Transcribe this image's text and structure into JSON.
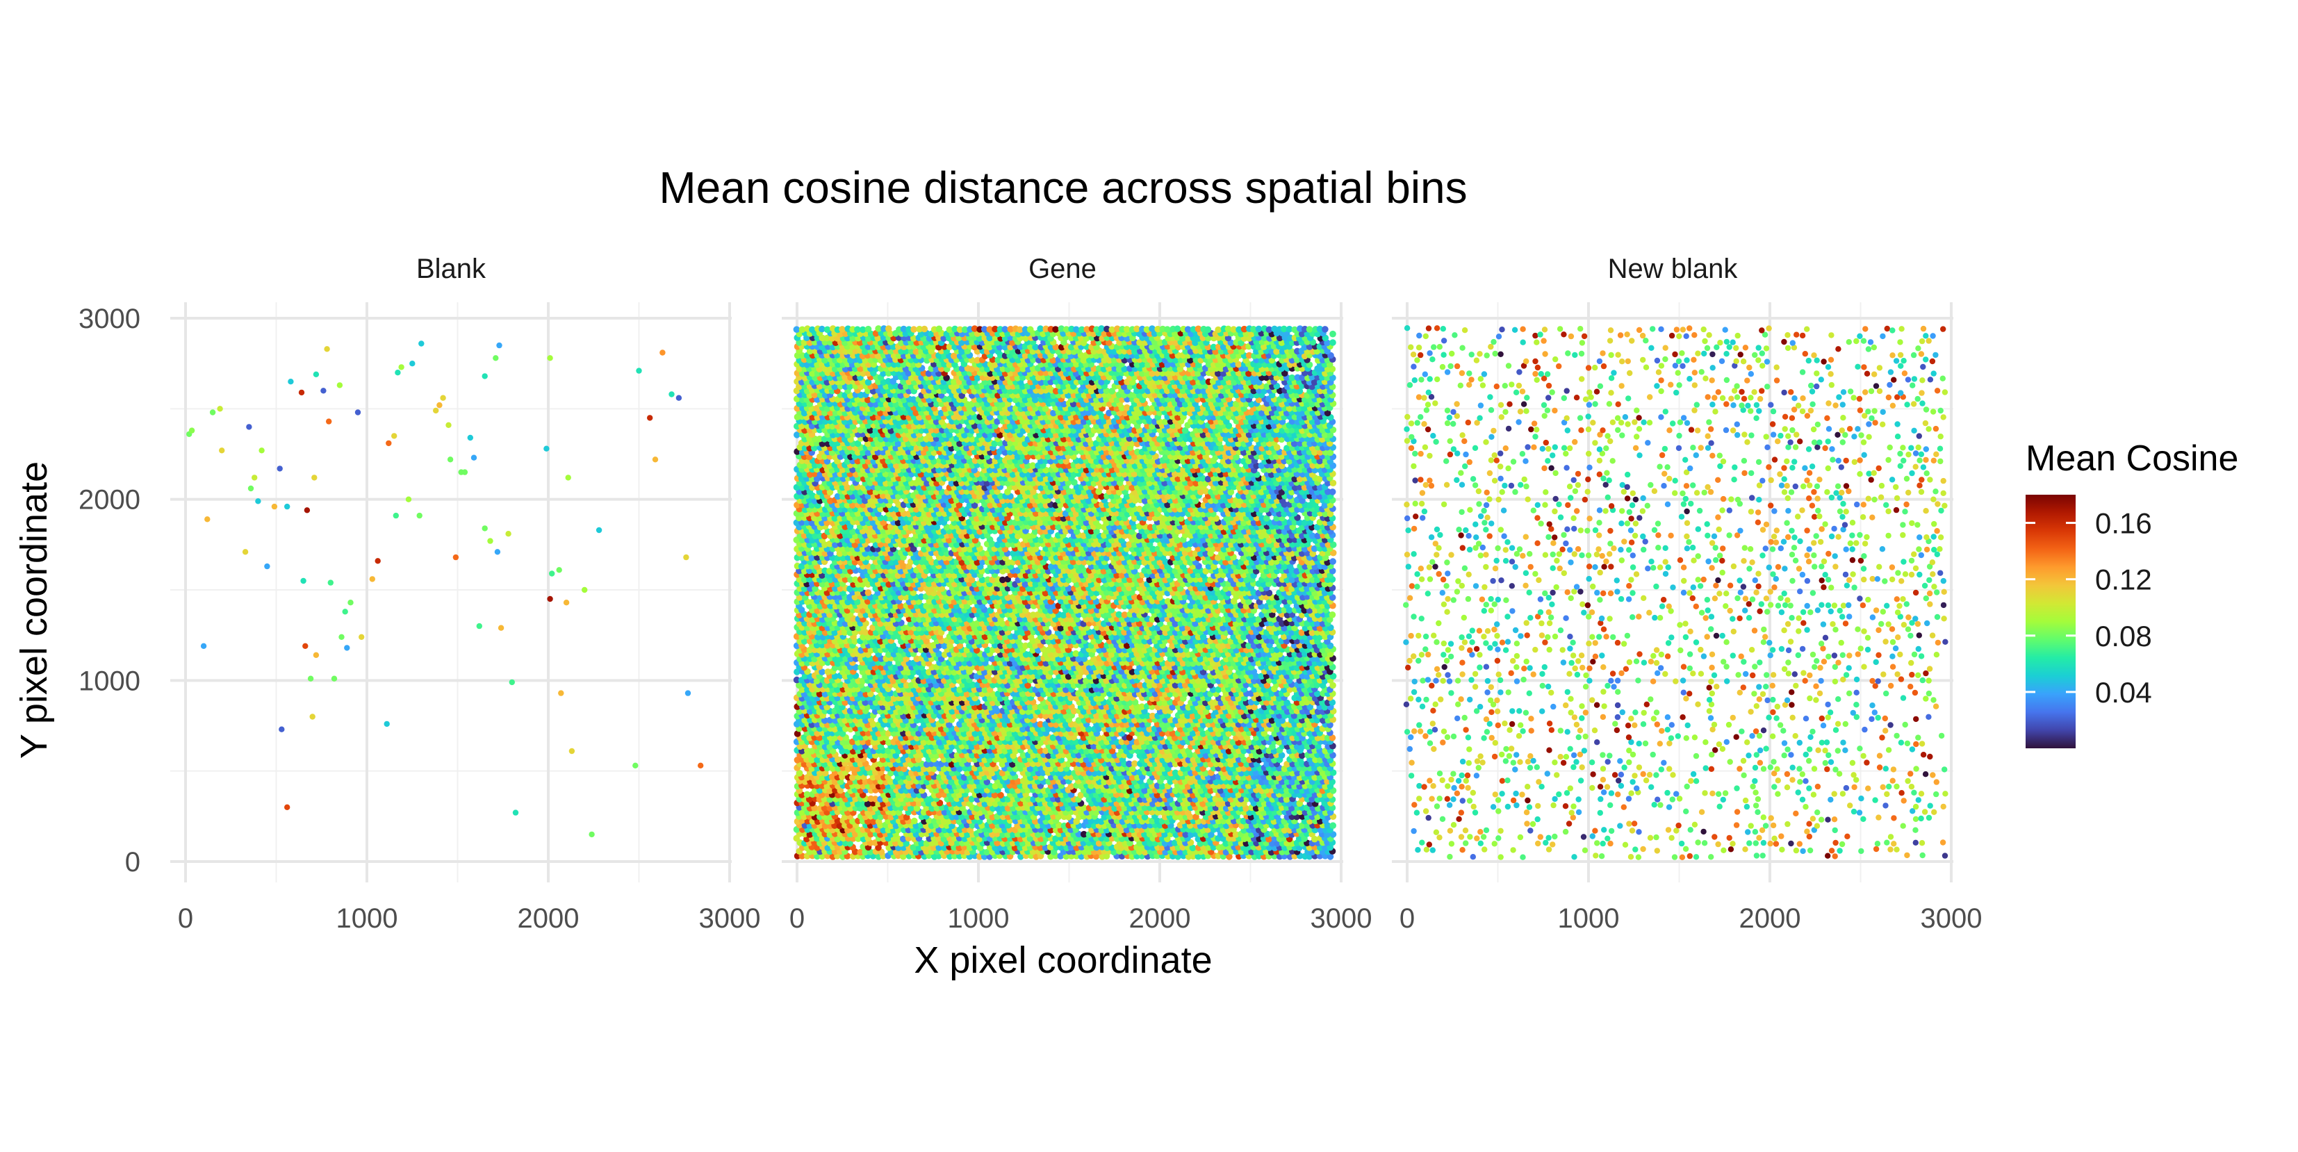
{
  "chart_data": {
    "type": "scatter",
    "title": "Mean cosine distance across spatial bins",
    "xlabel": "X pixel coordinate",
    "ylabel": "Y pixel coordinate",
    "xlim": [
      0,
      3000
    ],
    "ylim": [
      0,
      3000
    ],
    "x_ticks": [
      0,
      1000,
      2000,
      3000
    ],
    "y_ticks": [
      0,
      1000,
      2000,
      3000
    ],
    "grid": true,
    "legend": {
      "title": "Mean Cosine",
      "placement": "right",
      "range": [
        0.0,
        0.18
      ],
      "ticks": [
        0.16,
        0.12,
        0.08,
        0.04
      ],
      "tick_labels": [
        "0.16",
        "0.12",
        "0.08",
        "0.04"
      ],
      "colormap": [
        "#30123b",
        "#4145ab",
        "#4675ed",
        "#39a2fc",
        "#1bcfd4",
        "#24eca6",
        "#61fc6c",
        "#a4fc3b",
        "#d1e834",
        "#f3c63a",
        "#fe9b2d",
        "#f36315",
        "#d93806",
        "#b11901",
        "#7a0402"
      ]
    },
    "facets": [
      {
        "name": "Blank",
        "points": [
          [
            20,
            2360,
            0.08
          ],
          [
            35,
            2380,
            0.085
          ],
          [
            100,
            1190,
            0.04
          ],
          [
            120,
            1890,
            0.12
          ],
          [
            150,
            2480,
            0.08
          ],
          [
            190,
            2500,
            0.1
          ],
          [
            200,
            2270,
            0.11
          ],
          [
            330,
            1710,
            0.11
          ],
          [
            350,
            2400,
            0.02
          ],
          [
            360,
            2060,
            0.08
          ],
          [
            380,
            2120,
            0.1
          ],
          [
            400,
            1990,
            0.05
          ],
          [
            420,
            2270,
            0.09
          ],
          [
            450,
            1630,
            0.04
          ],
          [
            490,
            1960,
            0.12
          ],
          [
            520,
            2170,
            0.02
          ],
          [
            530,
            730,
            0.02
          ],
          [
            560,
            1960,
            0.05
          ],
          [
            560,
            300,
            0.15
          ],
          [
            580,
            2650,
            0.05
          ],
          [
            640,
            2590,
            0.16
          ],
          [
            650,
            1550,
            0.06
          ],
          [
            660,
            1190,
            0.15
          ],
          [
            670,
            1940,
            0.17
          ],
          [
            690,
            1010,
            0.08
          ],
          [
            700,
            800,
            0.11
          ],
          [
            710,
            2120,
            0.11
          ],
          [
            720,
            1140,
            0.12
          ],
          [
            720,
            2690,
            0.06
          ],
          [
            760,
            2600,
            0.02
          ],
          [
            780,
            2830,
            0.11
          ],
          [
            790,
            2430,
            0.14
          ],
          [
            800,
            1540,
            0.07
          ],
          [
            820,
            1010,
            0.08
          ],
          [
            850,
            2630,
            0.09
          ],
          [
            860,
            1240,
            0.08
          ],
          [
            880,
            1380,
            0.07
          ],
          [
            890,
            1180,
            0.04
          ],
          [
            910,
            1430,
            0.08
          ],
          [
            950,
            2480,
            0.02
          ],
          [
            970,
            1240,
            0.11
          ],
          [
            1030,
            1560,
            0.12
          ],
          [
            1060,
            1660,
            0.16
          ],
          [
            1110,
            760,
            0.05
          ],
          [
            1120,
            2310,
            0.14
          ],
          [
            1150,
            2350,
            0.11
          ],
          [
            1160,
            1910,
            0.07
          ],
          [
            1170,
            2700,
            0.06
          ],
          [
            1190,
            2730,
            0.09
          ],
          [
            1230,
            2000,
            0.09
          ],
          [
            1250,
            2750,
            0.05
          ],
          [
            1290,
            1910,
            0.08
          ],
          [
            1300,
            2860,
            0.05
          ],
          [
            1380,
            2490,
            0.11
          ],
          [
            1400,
            2520,
            0.12
          ],
          [
            1420,
            2560,
            0.11
          ],
          [
            1450,
            2410,
            0.1
          ],
          [
            1460,
            2220,
            0.08
          ],
          [
            1490,
            1680,
            0.14
          ],
          [
            1520,
            2150,
            0.08
          ],
          [
            1540,
            2150,
            0.08
          ],
          [
            1570,
            2340,
            0.05
          ],
          [
            1590,
            2230,
            0.04
          ],
          [
            1620,
            1300,
            0.07
          ],
          [
            1650,
            1840,
            0.08
          ],
          [
            1650,
            2680,
            0.06
          ],
          [
            1680,
            1770,
            0.09
          ],
          [
            1710,
            2780,
            0.08
          ],
          [
            1720,
            1710,
            0.04
          ],
          [
            1730,
            2850,
            0.04
          ],
          [
            1740,
            1290,
            0.12
          ],
          [
            1780,
            1810,
            0.1
          ],
          [
            1800,
            990,
            0.07
          ],
          [
            1820,
            270,
            0.06
          ],
          [
            1990,
            2280,
            0.05
          ],
          [
            2010,
            2780,
            0.09
          ],
          [
            2010,
            1450,
            0.17
          ],
          [
            2020,
            1590,
            0.07
          ],
          [
            2060,
            1610,
            0.08
          ],
          [
            2070,
            930,
            0.12
          ],
          [
            2100,
            1430,
            0.12
          ],
          [
            2110,
            2120,
            0.09
          ],
          [
            2130,
            610,
            0.11
          ],
          [
            2200,
            1500,
            0.09
          ],
          [
            2240,
            150,
            0.08
          ],
          [
            2280,
            1830,
            0.05
          ],
          [
            2480,
            530,
            0.08
          ],
          [
            2500,
            2710,
            0.06
          ],
          [
            2560,
            2450,
            0.16
          ],
          [
            2590,
            2220,
            0.12
          ],
          [
            2630,
            2810,
            0.13
          ],
          [
            2680,
            2580,
            0.06
          ],
          [
            2720,
            2560,
            0.02
          ],
          [
            2760,
            1680,
            0.11
          ],
          [
            2770,
            930,
            0.04
          ],
          [
            2840,
            530,
            0.14
          ]
        ]
      },
      {
        "name": "Gene",
        "density": "dense",
        "bin_grid": {
          "x_start": 0,
          "x_end": 2960,
          "y_start": 30,
          "y_end": 2950,
          "step": 28
        },
        "mean_value": 0.08,
        "regional_bias": [
          {
            "x": [
              0,
              500
            ],
            "y": [
              30,
              600
            ],
            "mean": 0.11
          },
          {
            "x": [
              2500,
              2960
            ],
            "y": [
              30,
              2950
            ],
            "mean": 0.06
          },
          {
            "x": [
              1200,
              1900
            ],
            "y": [
              1300,
              2500
            ],
            "mean": 0.085
          }
        ]
      },
      {
        "name": "New blank",
        "density": "medium",
        "bin_grid": {
          "x_start": 0,
          "x_end": 2960,
          "y_start": 30,
          "y_end": 2950,
          "step": 40
        },
        "fill_fraction": 0.36,
        "mean_value": 0.09
      }
    ]
  }
}
